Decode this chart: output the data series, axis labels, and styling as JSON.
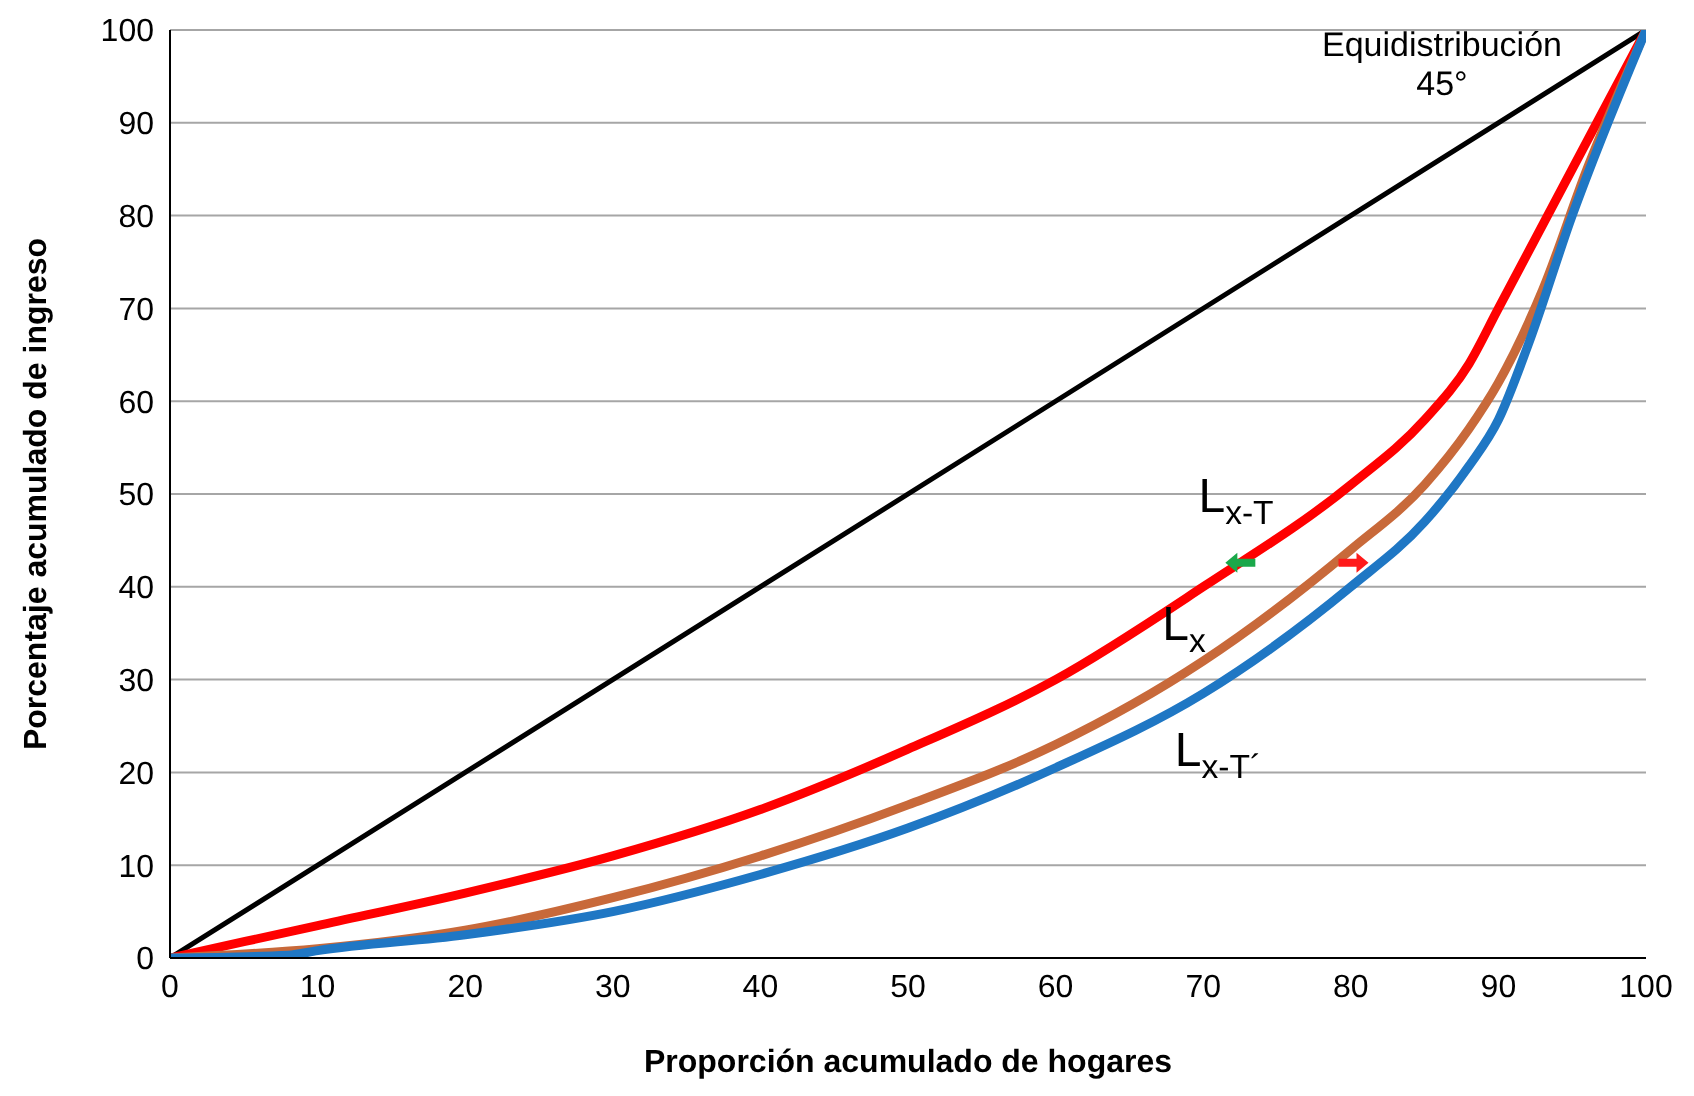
{
  "chart_data": {
    "type": "line",
    "xlabel": "Proporción acumulado de hogares",
    "ylabel": "Porcentaje acumulado de ingreso",
    "xlim": [
      0,
      100
    ],
    "xticks": [
      0,
      10,
      20,
      30,
      40,
      50,
      60,
      70,
      80,
      90,
      100
    ],
    "ylim": [
      0,
      100
    ],
    "yticks": [
      0,
      10,
      20,
      30,
      40,
      50,
      60,
      70,
      80,
      90,
      100
    ],
    "grid": "y",
    "marker": "none",
    "line_style": "solid",
    "series": [
      {
        "color": "#000000",
        "x": [
          0,
          100
        ],
        "values": [
          0,
          100
        ]
      },
      {
        "color": "#ff0000",
        "x": [
          0,
          10,
          20,
          30,
          40,
          50,
          60,
          70,
          80,
          85,
          88,
          90,
          95,
          100
        ],
        "values": [
          0,
          3.5,
          7,
          11,
          16,
          22.5,
          30,
          40,
          51,
          58,
          64,
          70,
          85,
          100
        ]
      },
      {
        "color": "#c8693a",
        "x": [
          0,
          10,
          20,
          30,
          40,
          50,
          60,
          70,
          80,
          85,
          88,
          90,
          93,
          96,
          100
        ],
        "values": [
          0,
          1,
          3,
          6.5,
          11,
          16.5,
          23,
          32,
          44,
          51,
          57,
          62,
          72,
          85,
          100
        ]
      },
      {
        "color": "#1f77c4",
        "x": [
          0,
          8,
          10,
          20,
          30,
          40,
          50,
          60,
          70,
          80,
          85,
          88,
          90,
          92,
          95,
          100
        ],
        "values": [
          0,
          0.3,
          0.8,
          2.5,
          5,
          9,
          14,
          20.5,
          28.5,
          40,
          47,
          53,
          58,
          66,
          80,
          100
        ]
      }
    ],
    "annotations": [
      "Equidistribución\n45°",
      "L$_{x-T}$",
      "L$_{x}$",
      "L$_{x-T´}$"
    ]
  }
}
